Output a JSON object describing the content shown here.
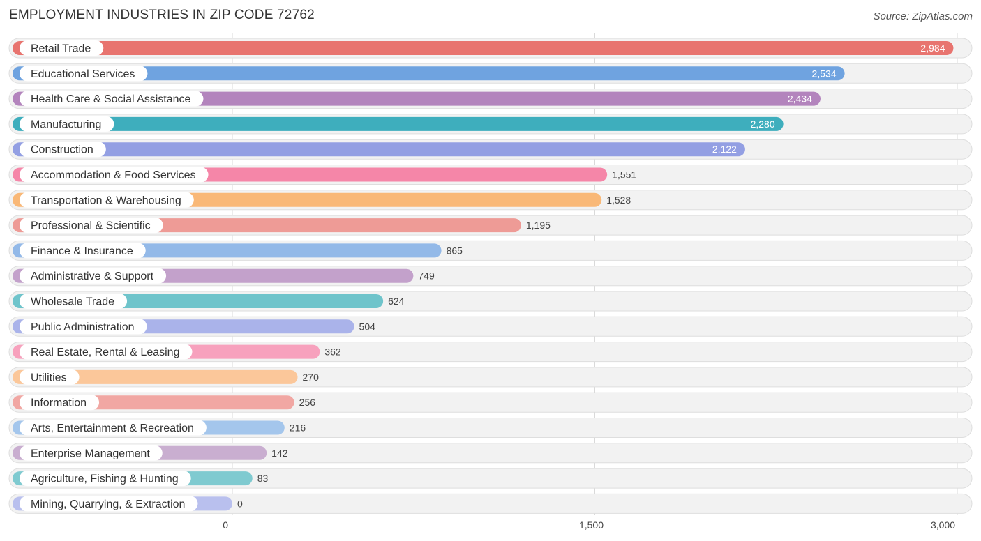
{
  "header": {
    "title": "EMPLOYMENT INDUSTRIES IN ZIP CODE 72762",
    "source": "Source: ZipAtlas.com"
  },
  "chart_data": {
    "type": "bar",
    "orientation": "horizontal",
    "title": "EMPLOYMENT INDUSTRIES IN ZIP CODE 72762",
    "xlim": [
      0,
      3000
    ],
    "ticks": [
      {
        "value": 0,
        "label": "0"
      },
      {
        "value": 1500,
        "label": "1,500"
      },
      {
        "value": 3000,
        "label": "3,000"
      }
    ],
    "grid": true,
    "categories": [
      "Retail Trade",
      "Educational Services",
      "Health Care & Social Assistance",
      "Manufacturing",
      "Construction",
      "Accommodation & Food Services",
      "Transportation & Warehousing",
      "Professional & Scientific",
      "Finance & Insurance",
      "Administrative & Support",
      "Wholesale Trade",
      "Public Administration",
      "Real Estate, Rental & Leasing",
      "Utilities",
      "Information",
      "Arts, Entertainment & Recreation",
      "Enterprise Management",
      "Agriculture, Fishing & Hunting",
      "Mining, Quarrying, & Extraction"
    ],
    "values": [
      2984,
      2534,
      2434,
      2280,
      2122,
      1551,
      1528,
      1195,
      865,
      749,
      624,
      504,
      362,
      270,
      256,
      216,
      142,
      83,
      0
    ],
    "value_labels": [
      "2,984",
      "2,534",
      "2,434",
      "2,280",
      "2,122",
      "1,551",
      "1,528",
      "1,195",
      "865",
      "749",
      "624",
      "504",
      "362",
      "270",
      "256",
      "216",
      "142",
      "83",
      "0"
    ],
    "colors": [
      "#e8746f",
      "#6fa3e0",
      "#b384bd",
      "#3eaebd",
      "#939fe3",
      "#f586a8",
      "#f9b877",
      "#ee9b96",
      "#93b9e8",
      "#c3a1cb",
      "#6fc4cb",
      "#aab3ea",
      "#f7a1bd",
      "#fbc79a",
      "#f1a7a3",
      "#a4c6ec",
      "#c9aed0",
      "#7fcad0",
      "#b9c0ee"
    ]
  }
}
